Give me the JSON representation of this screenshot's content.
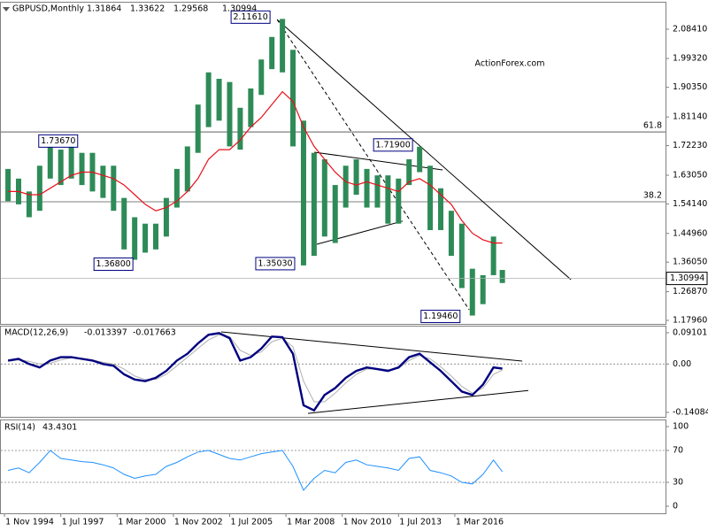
{
  "chart_data": [
    {
      "type": "ohlc",
      "symbol": "GBPUSD,Monthly",
      "open": 1.31864,
      "close": 1.30994,
      "color": "#2e8b57",
      "x": [
        1995,
        1995.5,
        1996,
        1996.5,
        1997,
        1997.5,
        1998,
        1998.5,
        1999,
        1999.5,
        2000,
        2000.5,
        2001,
        2001.5,
        2002,
        2002.5,
        2003,
        2003.5,
        2004,
        2004.5,
        2005,
        2005.5,
        2006,
        2006.5,
        2007,
        2007.5,
        2008,
        2008.5,
        2009,
        2009.5,
        2010,
        2010.5,
        2011,
        2011.5,
        2012,
        2012.5,
        2013,
        2013.5,
        2014,
        2014.5,
        2015,
        2015.5,
        2016,
        2016.5,
        2017,
        2017.5,
        2018,
        2018.42
      ],
      "high": [
        1.65,
        1.62,
        1.58,
        1.66,
        1.7367,
        1.71,
        1.72,
        1.7,
        1.7,
        1.66,
        1.66,
        1.56,
        1.5,
        1.48,
        1.48,
        1.56,
        1.65,
        1.72,
        1.85,
        1.95,
        1.93,
        1.92,
        1.84,
        1.9,
        1.99,
        2.06,
        2.1161,
        2.02,
        1.8,
        1.7,
        1.68,
        1.6,
        1.66,
        1.68,
        1.65,
        1.63,
        1.63,
        1.62,
        1.68,
        1.719,
        1.66,
        1.59,
        1.52,
        1.48,
        1.34,
        1.32,
        1.44,
        1.33622
      ],
      "low": [
        1.55,
        1.54,
        1.5,
        1.52,
        1.62,
        1.6,
        1.62,
        1.6,
        1.58,
        1.56,
        1.52,
        1.4,
        1.368,
        1.39,
        1.4,
        1.44,
        1.53,
        1.58,
        1.7,
        1.78,
        1.8,
        1.72,
        1.71,
        1.78,
        1.88,
        1.96,
        1.95,
        1.72,
        1.3503,
        1.38,
        1.44,
        1.42,
        1.53,
        1.57,
        1.53,
        1.53,
        1.48,
        1.48,
        1.6,
        1.64,
        1.46,
        1.46,
        1.38,
        1.28,
        1.1946,
        1.23,
        1.32,
        1.29568
      ],
      "ma": {
        "color": "#e8101a",
        "values": [
          1.58,
          1.58,
          1.57,
          1.57,
          1.59,
          1.61,
          1.63,
          1.64,
          1.64,
          1.63,
          1.62,
          1.6,
          1.57,
          1.54,
          1.52,
          1.53,
          1.55,
          1.58,
          1.62,
          1.68,
          1.71,
          1.71,
          1.74,
          1.78,
          1.81,
          1.85,
          1.89,
          1.86,
          1.78,
          1.72,
          1.68,
          1.64,
          1.61,
          1.6,
          1.61,
          1.6,
          1.59,
          1.58,
          1.61,
          1.62,
          1.6,
          1.57,
          1.54,
          1.49,
          1.45,
          1.43,
          1.42,
          1.42
        ]
      },
      "xlim": [
        1994.62,
        2026.15
      ],
      "ylim": [
        1.1686,
        2.1693
      ],
      "yticks": [
        {
          "value": 2.0841,
          "label": "2.08410"
        },
        {
          "value": 1.9932,
          "label": "1.99320"
        },
        {
          "value": 1.9035,
          "label": "1.90350"
        },
        {
          "value": 1.8114,
          "label": "1.81140"
        },
        {
          "value": 1.7223,
          "label": "1.72230"
        },
        {
          "value": 1.6305,
          "label": "1.63050"
        },
        {
          "value": 1.5414,
          "label": "1.54140"
        },
        {
          "value": 1.4496,
          "label": "1.44960"
        },
        {
          "value": 1.3605,
          "label": "1.36050"
        },
        {
          "value": 1.2687,
          "label": "1.26870"
        },
        {
          "value": 1.1796,
          "label": "1.17960"
        }
      ],
      "levels": [
        {
          "value": 1.765,
          "label": "61.8"
        },
        {
          "value": 1.548,
          "label": "38.2"
        }
      ],
      "annotations": [
        {
          "x": 2008,
          "value": 2.1161,
          "label": "2.11610"
        },
        {
          "x": 1997,
          "value": 1.7367,
          "label": "1.73670"
        },
        {
          "x": 2001,
          "value": 1.368,
          "label": "1.36800"
        },
        {
          "x": 2009,
          "value": 1.3503,
          "label": "1.35030"
        },
        {
          "x": 2014.5,
          "value": 1.719,
          "label": "1.71900"
        },
        {
          "x": 2017,
          "value": 1.1946,
          "label": "1.19460"
        }
      ],
      "trendlines": [
        {
          "x": [
            2007.75,
            2021.67
          ],
          "y": [
            2.114,
            1.306
          ],
          "dashed": false
        },
        {
          "x": [
            2007.75,
            2016.85
          ],
          "y": [
            2.114,
            1.2125
          ],
          "dashed": true
        },
        {
          "x": [
            2009.51,
            2015.59
          ],
          "y": [
            1.702,
            1.647
          ],
          "dashed": false
        },
        {
          "x": [
            2009.63,
            2013.7
          ],
          "y": [
            1.416,
            1.488
          ],
          "dashed": false
        }
      ],
      "watermark": "ActionForex.com"
    },
    {
      "type": "macd",
      "title": "MACD(12,26,9)",
      "x": [
        1995,
        1995.5,
        1996,
        1996.5,
        1997,
        1997.5,
        1998,
        1998.5,
        1999,
        1999.5,
        2000,
        2000.5,
        2001,
        2001.5,
        2002,
        2002.5,
        2003,
        2003.5,
        2004,
        2004.5,
        2005,
        2005.5,
        2006,
        2006.5,
        2007,
        2007.5,
        2008,
        2008.5,
        2009,
        2009.5,
        2010,
        2010.5,
        2011,
        2011.5,
        2012,
        2012.5,
        2013,
        2013.5,
        2014,
        2014.5,
        2015,
        2015.5,
        2016,
        2016.5,
        2017,
        2017.5,
        2018,
        2018.42
      ],
      "macd": {
        "color": "#000080",
        "values": [
          0.01,
          0.015,
          0.0,
          -0.01,
          0.01,
          0.02,
          0.02,
          0.015,
          0.01,
          0.0,
          -0.005,
          -0.03,
          -0.045,
          -0.05,
          -0.04,
          -0.02,
          0.01,
          0.03,
          0.06,
          0.085,
          0.09,
          0.075,
          0.01,
          0.02,
          0.045,
          0.08,
          0.078,
          0.03,
          -0.12,
          -0.135,
          -0.09,
          -0.07,
          -0.04,
          -0.02,
          -0.01,
          -0.015,
          -0.02,
          -0.01,
          0.02,
          0.03,
          0.005,
          -0.02,
          -0.05,
          -0.08,
          -0.09,
          -0.06,
          -0.01,
          -0.013397
        ]
      },
      "signal": {
        "color": "#b0b0b0",
        "values": [
          0.008,
          0.012,
          0.008,
          0.0,
          0.002,
          0.012,
          0.018,
          0.017,
          0.012,
          0.005,
          0.0,
          -0.015,
          -0.035,
          -0.045,
          -0.045,
          -0.03,
          -0.005,
          0.02,
          0.045,
          0.07,
          0.085,
          0.08,
          0.04,
          0.025,
          0.035,
          0.065,
          0.075,
          0.05,
          -0.05,
          -0.11,
          -0.11,
          -0.085,
          -0.055,
          -0.03,
          -0.015,
          -0.013,
          -0.017,
          -0.013,
          0.01,
          0.025,
          0.015,
          -0.008,
          -0.035,
          -0.065,
          -0.085,
          -0.07,
          -0.03,
          -0.017663
        ]
      },
      "xlim": [
        1994.62,
        2026.15
      ],
      "ylim": [
        -0.1537,
        0.109
      ],
      "yticks": [
        0.091015,
        {
          "value": 0,
          "label": "0.00"
        },
        -0.140843
      ],
      "levels": [
        0
      ],
      "trendlines": [
        {
          "x": [
            2005.1,
            2019.36
          ],
          "y": [
            0.0935,
            0.0085
          ],
          "dashed": false
        },
        {
          "x": [
            2009.21,
            2019.65
          ],
          "y": [
            -0.1436,
            -0.0771
          ],
          "dashed": false
        }
      ]
    },
    {
      "type": "rsi",
      "title": "RSI(14)",
      "color": "#1e90ff",
      "x": [
        1995,
        1995.5,
        1996,
        1996.5,
        1997,
        1997.5,
        1998,
        1998.5,
        1999,
        1999.5,
        2000,
        2000.5,
        2001,
        2001.5,
        2002,
        2002.5,
        2003,
        2003.5,
        2004,
        2004.5,
        2005,
        2005.5,
        2006,
        2006.5,
        2007,
        2007.5,
        2008,
        2008.5,
        2009,
        2009.5,
        2010,
        2010.5,
        2011,
        2011.5,
        2012,
        2012.5,
        2013,
        2013.5,
        2014,
        2014.5,
        2015,
        2015.5,
        2016,
        2016.5,
        2017,
        2017.5,
        2018,
        2018.42
      ],
      "values": [
        45,
        48,
        42,
        55,
        70,
        60,
        58,
        56,
        55,
        52,
        48,
        40,
        35,
        38,
        40,
        50,
        55,
        62,
        68,
        70,
        65,
        60,
        58,
        62,
        66,
        68,
        70,
        50,
        20,
        35,
        45,
        42,
        55,
        58,
        52,
        50,
        48,
        45,
        60,
        62,
        45,
        42,
        38,
        30,
        28,
        40,
        58,
        43.4301
      ],
      "xlim": [
        1994.62,
        2026.15
      ],
      "ylim": [
        -8.9,
        107.8
      ],
      "yticks": [
        100,
        70,
        30,
        0
      ],
      "levels": [
        70,
        30
      ],
      "xticks": [
        {
          "value": 1994.833,
          "label": "1 Nov 1994"
        },
        {
          "value": 1997.5,
          "label": "1 Jul 1997"
        },
        {
          "value": 2000.167,
          "label": "1 Mar 2000"
        },
        {
          "value": 2002.833,
          "label": "1 Nov 2002"
        },
        {
          "value": 2005.5,
          "label": "1 Jul 2005"
        },
        {
          "value": 2008.167,
          "label": "1 Mar 2008"
        },
        {
          "value": 2010.833,
          "label": "1 Nov 2010"
        },
        {
          "value": 2013.5,
          "label": "1 Jul 2013"
        },
        {
          "value": 2016.167,
          "label": "1 Mar 2016"
        }
      ]
    }
  ]
}
